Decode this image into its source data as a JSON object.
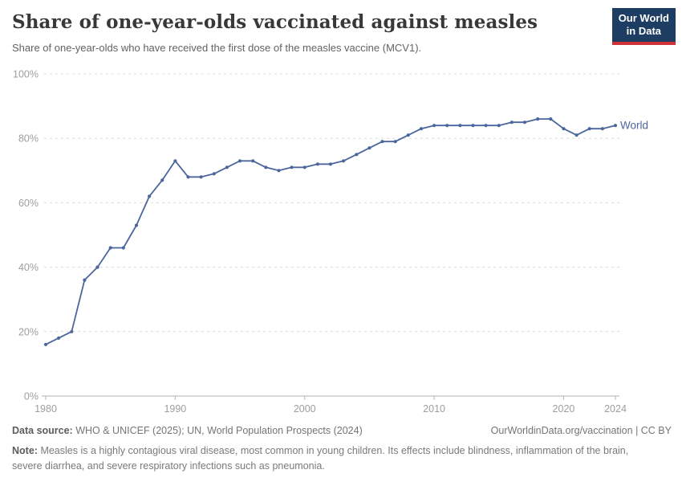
{
  "header": {
    "title": "Share of one-year-olds vaccinated against measles",
    "subtitle": "Share of one-year-olds who have received the first dose of the measles vaccine (MCV1).",
    "logo": {
      "line1": "Our World",
      "line2": "in Data"
    }
  },
  "chart_data": {
    "type": "line",
    "title": "Share of one-year-olds vaccinated against measles",
    "xlabel": "",
    "ylabel": "",
    "xlim": [
      1980,
      2024
    ],
    "ylim": [
      0,
      100
    ],
    "x_ticks": [
      1980,
      1990,
      2000,
      2010,
      2020,
      2024
    ],
    "y_ticks": [
      0,
      20,
      40,
      60,
      80,
      100
    ],
    "y_tick_suffix": "%",
    "grid": "horizontal-dashed",
    "legend_position": "end-of-line",
    "x": [
      1980,
      1981,
      1982,
      1983,
      1984,
      1985,
      1986,
      1987,
      1988,
      1989,
      1990,
      1991,
      1992,
      1993,
      1994,
      1995,
      1996,
      1997,
      1998,
      1999,
      2000,
      2001,
      2002,
      2003,
      2004,
      2005,
      2006,
      2007,
      2008,
      2009,
      2010,
      2011,
      2012,
      2013,
      2014,
      2015,
      2016,
      2017,
      2018,
      2019,
      2020,
      2021,
      2022,
      2023,
      2024
    ],
    "series": [
      {
        "name": "World",
        "color": "#4b669d",
        "values": [
          16,
          18,
          20,
          36,
          40,
          46,
          46,
          53,
          62,
          67,
          73,
          68,
          68,
          69,
          71,
          73,
          73,
          71,
          70,
          71,
          71,
          72,
          72,
          73,
          75,
          77,
          79,
          79,
          81,
          83,
          84,
          84,
          84,
          84,
          84,
          84,
          85,
          85,
          86,
          86,
          83,
          81,
          83,
          83,
          84
        ]
      }
    ]
  },
  "footer": {
    "datasource_label": "Data source:",
    "datasource_text": "WHO & UNICEF (2025); UN, World Population Prospects (2024)",
    "credit": "OurWorldinData.org/vaccination | CC BY",
    "note_label": "Note:",
    "note_text": "Measles is a highly contagious viral disease, most common in young children. Its effects include blindness, inflammation of the brain, severe diarrhea, and severe respiratory infections such as pneumonia."
  },
  "colors": {
    "line": "#4b669d",
    "logo_bg": "#1d3d63",
    "logo_accent": "#d13239",
    "grid": "#dcdcdc",
    "axis": "#b3b3b3",
    "tick_label": "#9e9e9e"
  }
}
